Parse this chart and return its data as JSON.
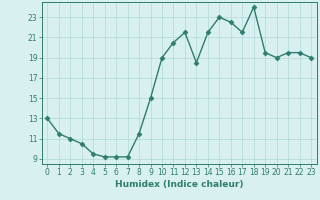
{
  "x": [
    0,
    1,
    2,
    3,
    4,
    5,
    6,
    7,
    8,
    9,
    10,
    11,
    12,
    13,
    14,
    15,
    16,
    17,
    18,
    19,
    20,
    21,
    22,
    23
  ],
  "y": [
    13,
    11.5,
    11,
    10.5,
    9.5,
    9.2,
    9.2,
    9.2,
    11.5,
    15,
    19,
    20.5,
    21.5,
    18.5,
    21.5,
    23,
    22.5,
    21.5,
    24,
    19.5,
    19,
    19.5,
    19.5,
    19
  ],
  "line_color": "#2e7d6e",
  "marker": "D",
  "markersize": 2.5,
  "linewidth": 1.0,
  "bg_color": "#d8f0f0",
  "grid_color": "#b0d8d8",
  "xlabel": "Humidex (Indice chaleur)",
  "xlabel_fontsize": 6.5,
  "tick_fontsize": 5.5,
  "yticks": [
    9,
    11,
    13,
    15,
    17,
    19,
    21,
    23
  ],
  "xticks": [
    0,
    1,
    2,
    3,
    4,
    5,
    6,
    7,
    8,
    9,
    10,
    11,
    12,
    13,
    14,
    15,
    16,
    17,
    18,
    19,
    20,
    21,
    22,
    23
  ],
  "ylim": [
    8.5,
    24.5
  ],
  "xlim": [
    -0.5,
    23.5
  ]
}
